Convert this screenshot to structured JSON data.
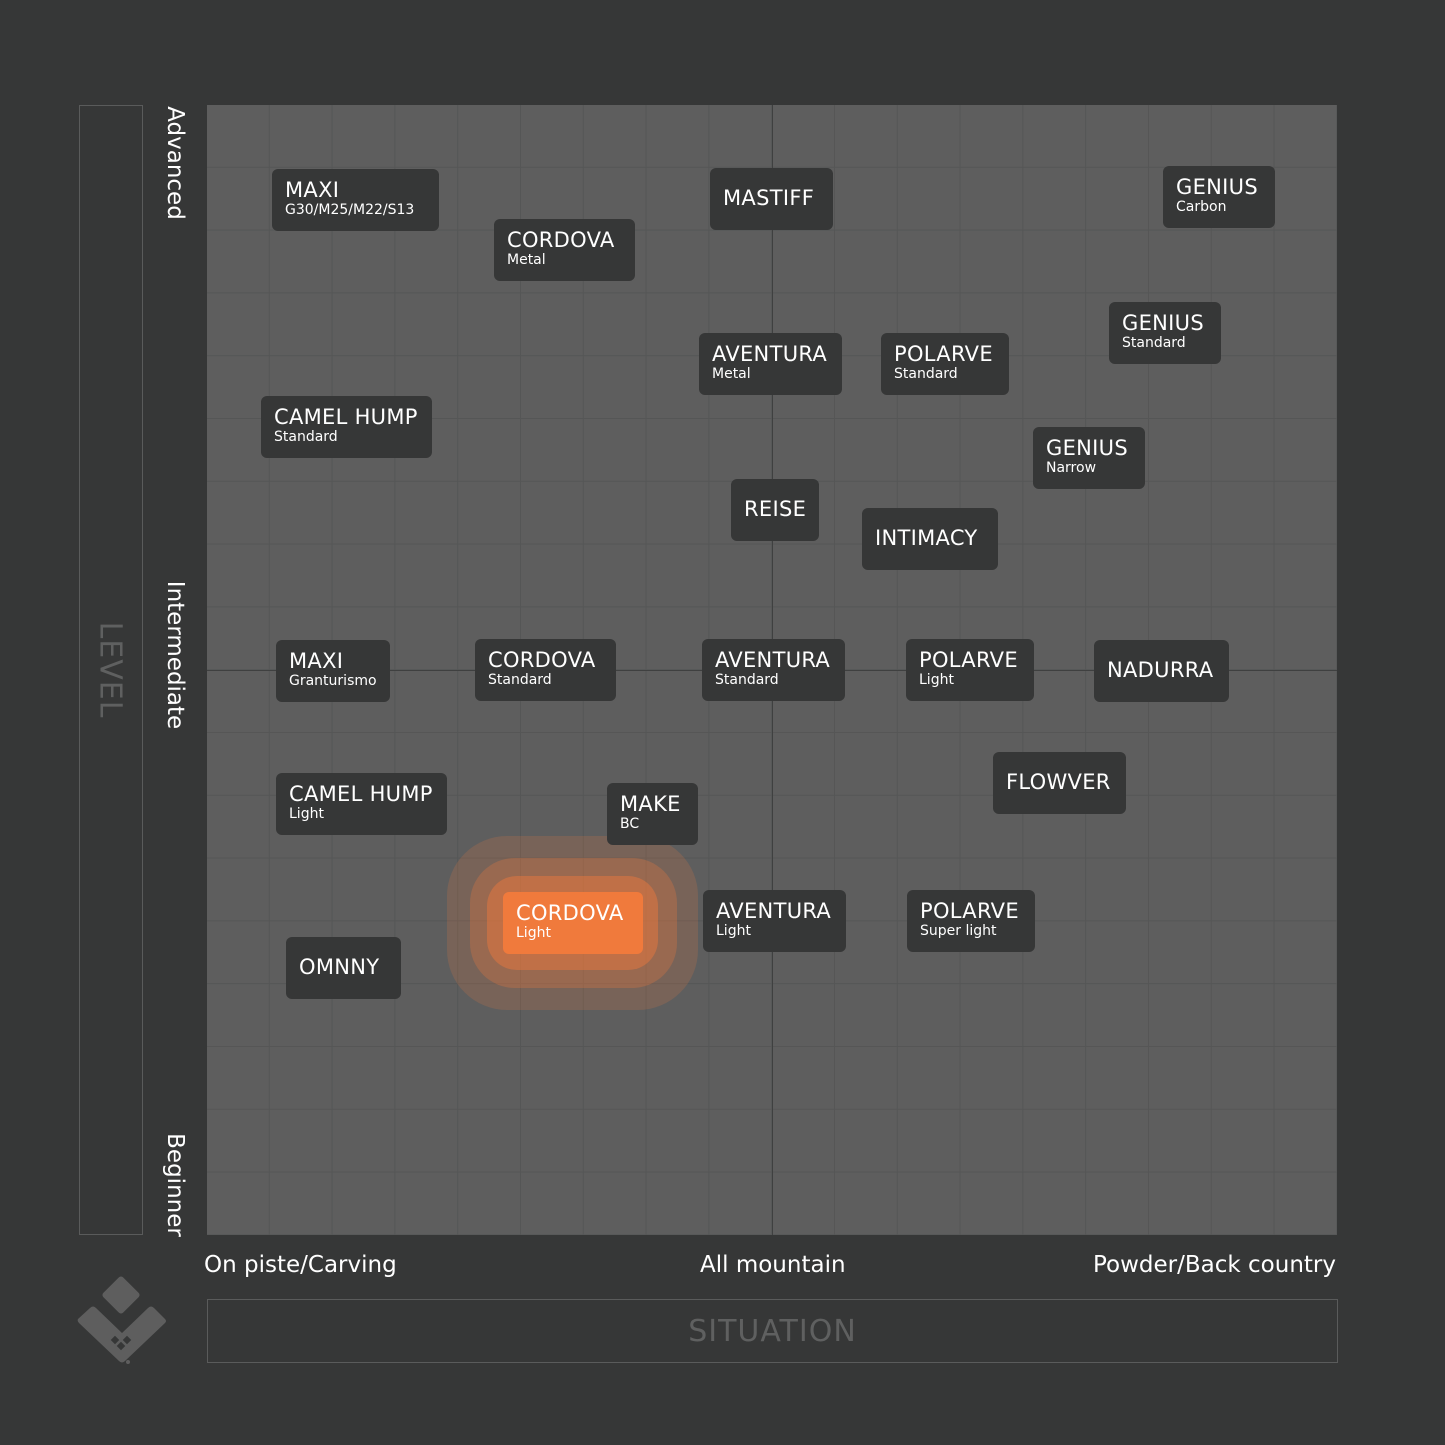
{
  "axes": {
    "y_title": "LEVEL",
    "y_labels": {
      "top": "Advanced",
      "middle": "Intermediate",
      "bottom": "Beginner"
    },
    "x_title": "SITUATION",
    "x_labels": {
      "left": "On piste/Carving",
      "middle": "All mountain",
      "right": "Powder/Back country"
    }
  },
  "colors": {
    "highlight": "#f07a3c",
    "tag": "#363737",
    "plot": "#5e5e5e",
    "background": "#363737"
  },
  "items": [
    {
      "name": "MAXI",
      "sub": "G30/M25/M22/S13"
    },
    {
      "name": "CORDOVA",
      "sub": "Metal"
    },
    {
      "name": "MASTIFF",
      "sub": ""
    },
    {
      "name": "GENIUS",
      "sub": "Carbon"
    },
    {
      "name": "GENIUS",
      "sub": "Standard"
    },
    {
      "name": "AVENTURA",
      "sub": "Metal"
    },
    {
      "name": "POLARVE",
      "sub": "Standard"
    },
    {
      "name": "CAMEL HUMP",
      "sub": "Standard"
    },
    {
      "name": "GENIUS",
      "sub": "Narrow"
    },
    {
      "name": "REISE",
      "sub": ""
    },
    {
      "name": "INTIMACY",
      "sub": ""
    },
    {
      "name": "MAXI",
      "sub": "Granturismo"
    },
    {
      "name": "CORDOVA",
      "sub": "Standard"
    },
    {
      "name": "AVENTURA",
      "sub": "Standard"
    },
    {
      "name": "POLARVE",
      "sub": "Light"
    },
    {
      "name": "NADURRA",
      "sub": ""
    },
    {
      "name": "FLOWVER",
      "sub": ""
    },
    {
      "name": "CAMEL HUMP",
      "sub": "Light"
    },
    {
      "name": "MAKE",
      "sub": "BC"
    },
    {
      "name": "CORDOVA",
      "sub": "Light",
      "highlighted": true
    },
    {
      "name": "AVENTURA",
      "sub": "Light"
    },
    {
      "name": "POLARVE",
      "sub": "Super light"
    },
    {
      "name": "OMNNY",
      "sub": ""
    }
  ]
}
